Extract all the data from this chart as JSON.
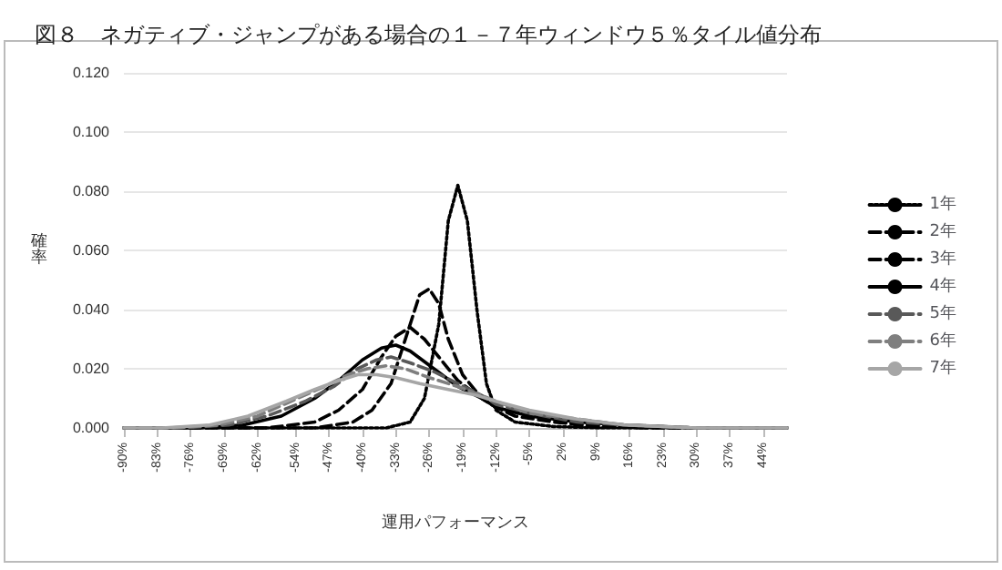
{
  "chart_data": {
    "type": "line",
    "title": "図８　ネガティブ・ジャンプがある場合の１－７年ウィンドウ５％タイル値分布",
    "xlabel": "運用パフォーマンス",
    "ylabel": "確率",
    "xlim": [
      -90,
      49
    ],
    "xticks": [
      {
        "value": -90,
        "label": "-90%"
      },
      {
        "value": -83,
        "label": "-83%"
      },
      {
        "value": -76,
        "label": "-76%"
      },
      {
        "value": -69,
        "label": "-69%"
      },
      {
        "value": -62,
        "label": "-62%"
      },
      {
        "value": -54,
        "label": "-54%"
      },
      {
        "value": -47,
        "label": "-47%"
      },
      {
        "value": -40,
        "label": "-40%"
      },
      {
        "value": -33,
        "label": "-33%"
      },
      {
        "value": -26,
        "label": "-26%"
      },
      {
        "value": -19,
        "label": "-19%"
      },
      {
        "value": -12,
        "label": "-12%"
      },
      {
        "value": -5,
        "label": "-5%"
      },
      {
        "value": 2,
        "label": "2%"
      },
      {
        "value": 9,
        "label": "9%"
      },
      {
        "value": 16,
        "label": "16%"
      },
      {
        "value": 23,
        "label": "23%"
      },
      {
        "value": 30,
        "label": "30%"
      },
      {
        "value": 37,
        "label": "37%"
      },
      {
        "value": 44,
        "label": "44%"
      }
    ],
    "ylim": [
      0,
      0.12
    ],
    "yticks": [
      {
        "value": 0,
        "label": "0.000"
      },
      {
        "value": 0.02,
        "label": "0.020"
      },
      {
        "value": 0.04,
        "label": "0.040"
      },
      {
        "value": 0.06,
        "label": "0.060"
      },
      {
        "value": 0.08,
        "label": "0.080"
      },
      {
        "value": 0.1,
        "label": "0.100"
      },
      {
        "value": 0.12,
        "label": "0.120"
      }
    ],
    "grid": "y",
    "legend": "right",
    "marker": "none",
    "series": [
      {
        "name": "1年",
        "color": "#000000",
        "line_style": "dotted",
        "x": [
          -90,
          -40,
          -35,
          -30,
          -27,
          -24,
          -22,
          -20,
          -18,
          -16,
          -14,
          -12,
          -8,
          0,
          10,
          49
        ],
        "values": [
          0,
          0,
          0,
          0.002,
          0.01,
          0.035,
          0.07,
          0.082,
          0.07,
          0.04,
          0.015,
          0.006,
          0.002,
          0.0005,
          0,
          0
        ]
      },
      {
        "name": "2年",
        "color": "#000000",
        "line_style": "dashed",
        "x": [
          -90,
          -50,
          -42,
          -38,
          -34,
          -31,
          -28,
          -26,
          -24,
          -22,
          -19,
          -15,
          -12,
          -8,
          0,
          10,
          20,
          49
        ],
        "values": [
          0,
          0,
          0.002,
          0.006,
          0.015,
          0.03,
          0.045,
          0.047,
          0.042,
          0.03,
          0.018,
          0.01,
          0.007,
          0.004,
          0.002,
          0.0005,
          0,
          0
        ]
      },
      {
        "name": "3年",
        "color": "#000000",
        "line_style": "dashed",
        "x": [
          -90,
          -60,
          -50,
          -45,
          -40,
          -36,
          -33,
          -30,
          -27,
          -24,
          -20,
          -15,
          -12,
          -5,
          5,
          20,
          49
        ],
        "values": [
          0,
          0,
          0.002,
          0.006,
          0.013,
          0.024,
          0.031,
          0.034,
          0.03,
          0.024,
          0.016,
          0.01,
          0.007,
          0.004,
          0.001,
          0,
          0
        ]
      },
      {
        "name": "4年",
        "color": "#000000",
        "line_style": "solid",
        "x": [
          -90,
          -75,
          -65,
          -57,
          -50,
          -45,
          -40,
          -36,
          -33,
          -30,
          -25,
          -20,
          -15,
          -12,
          -5,
          5,
          15,
          30,
          49
        ],
        "values": [
          0,
          0,
          0.001,
          0.004,
          0.01,
          0.016,
          0.023,
          0.027,
          0.028,
          0.026,
          0.02,
          0.014,
          0.01,
          0.007,
          0.004,
          0.002,
          0.001,
          0,
          0
        ]
      },
      {
        "name": "5年",
        "color": "#595959",
        "line_style": "dashed",
        "x": [
          -90,
          -78,
          -68,
          -60,
          -52,
          -46,
          -41,
          -37,
          -34,
          -30,
          -25,
          -20,
          -15,
          -12,
          -5,
          5,
          15,
          30,
          49
        ],
        "values": [
          0,
          0,
          0.001,
          0.004,
          0.009,
          0.014,
          0.02,
          0.023,
          0.024,
          0.022,
          0.019,
          0.015,
          0.011,
          0.008,
          0.005,
          0.002,
          0.001,
          0,
          0
        ]
      },
      {
        "name": "6年",
        "color": "#7f7f7f",
        "line_style": "dashed",
        "x": [
          -90,
          -80,
          -70,
          -62,
          -55,
          -48,
          -43,
          -39,
          -35,
          -31,
          -26,
          -20,
          -15,
          -12,
          -5,
          5,
          15,
          30,
          49
        ],
        "values": [
          0,
          0,
          0.001,
          0.004,
          0.009,
          0.014,
          0.018,
          0.02,
          0.021,
          0.02,
          0.017,
          0.014,
          0.011,
          0.009,
          0.005,
          0.003,
          0.001,
          0,
          0
        ]
      },
      {
        "name": "7年",
        "color": "#a6a6a6",
        "line_style": "solid",
        "x": [
          -90,
          -82,
          -72,
          -64,
          -56,
          -50,
          -45,
          -41,
          -37,
          -33,
          -28,
          -22,
          -16,
          -12,
          -5,
          5,
          15,
          30,
          49
        ],
        "values": [
          0,
          0,
          0.001,
          0.004,
          0.009,
          0.013,
          0.016,
          0.018,
          0.018,
          0.017,
          0.015,
          0.013,
          0.011,
          0.009,
          0.006,
          0.003,
          0.001,
          0,
          0
        ]
      }
    ]
  }
}
